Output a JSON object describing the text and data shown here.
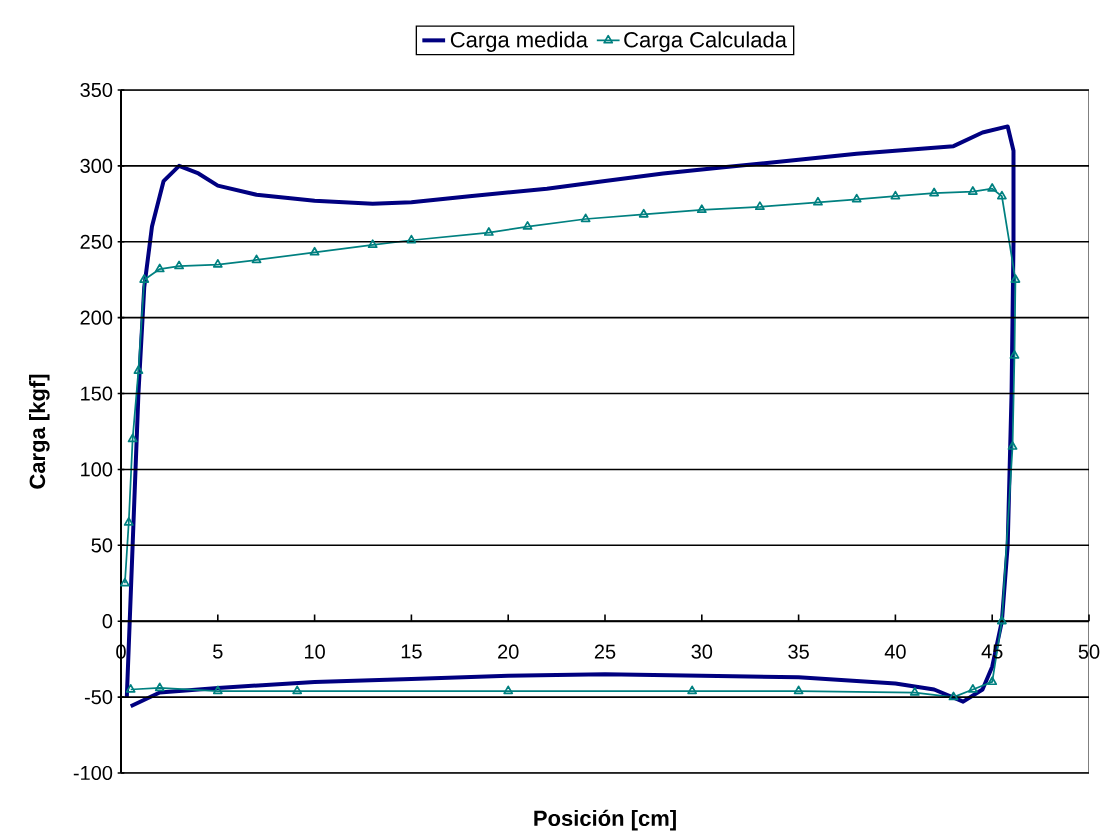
{
  "chart_data": {
    "type": "line",
    "xlabel": "Posición [cm]",
    "ylabel": "Carga [kgf]",
    "xlim": [
      0,
      50
    ],
    "ylim": [
      -100,
      350
    ],
    "xticks": [
      0,
      5,
      10,
      15,
      20,
      25,
      30,
      35,
      40,
      45,
      50
    ],
    "yticks": [
      -100,
      -50,
      0,
      50,
      100,
      150,
      200,
      250,
      300,
      350
    ],
    "grid": "y",
    "legend": "top",
    "line_style": "solid",
    "series": [
      {
        "name": "Carga medida",
        "color": "#000080",
        "marker": "none",
        "x": [
          0.3,
          0.6,
          0.9,
          1.2,
          1.6,
          2.2,
          3.0,
          4.0,
          5.0,
          7.0,
          10.0,
          13.0,
          15.0,
          18.0,
          22.0,
          25.0,
          28.0,
          31.0,
          35.0,
          38.0,
          41.0,
          43.0,
          44.5,
          45.8,
          46.1,
          46.1,
          46.0,
          45.8,
          45.5,
          45.0,
          44.5,
          43.5,
          42.0,
          40.0,
          35.0,
          30.0,
          25.0,
          20.0,
          15.0,
          10.0,
          5.0,
          2.0,
          0.5
        ],
        "values": [
          -50,
          50,
          150,
          220,
          260,
          290,
          300,
          295,
          287,
          281,
          277,
          275,
          276,
          280,
          285,
          290,
          295,
          299,
          304,
          308,
          311,
          313,
          322,
          326,
          310,
          250,
          150,
          50,
          0,
          -30,
          -45,
          -53,
          -45,
          -41,
          -37,
          -36,
          -35,
          -36,
          -38,
          -40,
          -44,
          -47,
          -56
        ]
      },
      {
        "name": "Carga Calculada",
        "color": "#008080",
        "marker": "triangle",
        "x": [
          0.2,
          0.4,
          0.6,
          0.9,
          1.2,
          2.0,
          3.0,
          5.0,
          7.0,
          10.0,
          13.0,
          15.0,
          19.0,
          21.0,
          24.0,
          27.0,
          30.0,
          33.0,
          36.0,
          38.0,
          40.0,
          42.0,
          44.0,
          45.0,
          45.5,
          46.2,
          46.15,
          46.05,
          45.5,
          45.0,
          44.0,
          43.0,
          41.0,
          35.0,
          29.5,
          20.0,
          9.1,
          5.0,
          2.0,
          0.5
        ],
        "values": [
          25,
          65,
          120,
          165,
          225,
          232,
          234,
          235,
          238,
          243,
          248,
          251,
          256,
          260,
          265,
          268,
          271,
          273,
          276,
          278,
          280,
          282,
          283,
          285,
          280,
          225,
          175,
          115,
          0,
          -40,
          -45,
          -50,
          -47,
          -46,
          -46,
          -46,
          -46,
          -46,
          -44,
          -45
        ]
      }
    ]
  }
}
